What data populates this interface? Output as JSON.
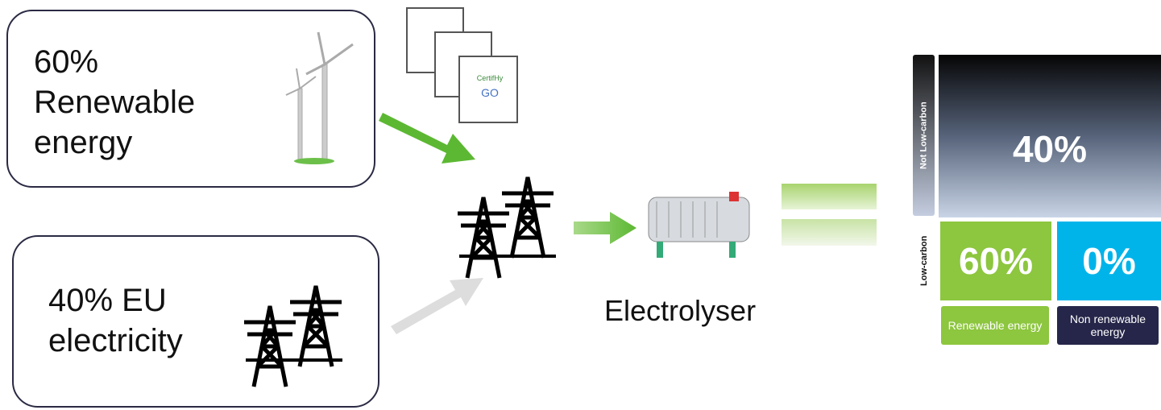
{
  "sources": [
    {
      "label": "60% Renewable energy"
    },
    {
      "label": "40% EU electricity"
    }
  ],
  "certificate": {
    "brand": "CertifHy",
    "label": "GO"
  },
  "electrolyser": {
    "label": "Electrolyser"
  },
  "matrix": {
    "row_labels": [
      "Not Low-carbon",
      "Low-carbon"
    ],
    "cells": [
      "40%",
      "60%",
      "0%"
    ],
    "column_labels": [
      "Renewable energy",
      "Non renewable energy"
    ]
  }
}
